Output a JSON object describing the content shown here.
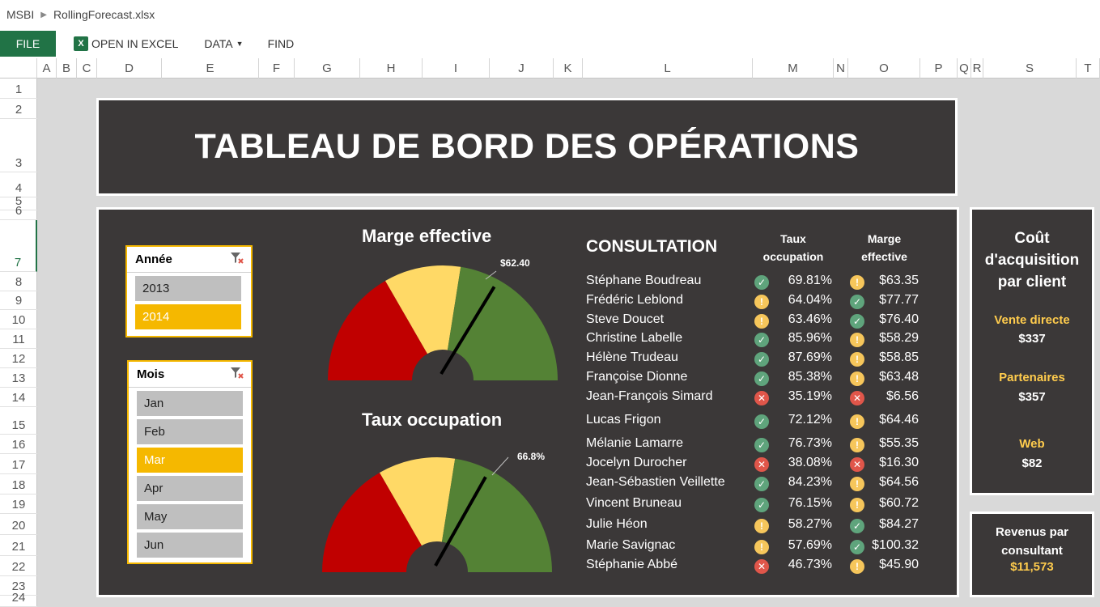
{
  "breadcrumb": {
    "root": "MSBI",
    "file": "RollingForecast.xlsx"
  },
  "ribbon": {
    "file": "FILE",
    "open_excel": "OPEN IN EXCEL",
    "data": "DATA",
    "find": "FIND"
  },
  "columns": [
    "A",
    "B",
    "C",
    "D",
    "E",
    "F",
    "G",
    "H",
    "I",
    "J",
    "K",
    "L",
    "M",
    "N",
    "O",
    "P",
    "Q",
    "R",
    "S",
    "T"
  ],
  "rows": [
    "1",
    "2",
    "3",
    "4",
    "5",
    "6",
    "7",
    "8",
    "9",
    "10",
    "11",
    "12",
    "13",
    "14",
    "15",
    "16",
    "17",
    "18",
    "19",
    "20",
    "21",
    "22",
    "23",
    "24"
  ],
  "title": "TABLEAU DE BORD DES OPÉRATIONS",
  "slicer_annee": {
    "title": "Année",
    "items": [
      "2013",
      "2014"
    ],
    "selected": "2014"
  },
  "slicer_mois": {
    "title": "Mois",
    "items": [
      "Jan",
      "Feb",
      "Mar",
      "Apr",
      "May",
      "Jun"
    ],
    "selected": "Mar"
  },
  "gauge1": {
    "title": "Marge effective",
    "value_label": "$62.40",
    "value_fraction": 0.66
  },
  "gauge2": {
    "title": "Taux occupation",
    "value_label": "66.8%",
    "value_fraction": 0.65
  },
  "gauge_colors": {
    "red": "#c00000",
    "yellow": "#ffd966",
    "green": "#548235"
  },
  "consultation": {
    "title": "CONSULTATION",
    "col1": [
      "Taux",
      "occupation"
    ],
    "col2": [
      "Marge",
      "effective"
    ],
    "rows": [
      {
        "name": "Stéphane Boudreau",
        "s1": "ok",
        "taux": "69.81%",
        "s2": "warn",
        "marge": "$63.35"
      },
      {
        "name": "Frédéric Leblond",
        "s1": "warn",
        "taux": "64.04%",
        "s2": "ok",
        "marge": "$77.77"
      },
      {
        "name": "Steve Doucet",
        "s1": "warn",
        "taux": "63.46%",
        "s2": "ok",
        "marge": "$76.40"
      },
      {
        "name": "Christine Labelle",
        "s1": "ok",
        "taux": "85.96%",
        "s2": "warn",
        "marge": "$58.29"
      },
      {
        "name": "Hélène Trudeau",
        "s1": "ok",
        "taux": "87.69%",
        "s2": "warn",
        "marge": "$58.85"
      },
      {
        "name": "Françoise Dionne",
        "s1": "ok",
        "taux": "85.38%",
        "s2": "warn",
        "marge": "$63.48"
      },
      {
        "name": "Jean-François Simard",
        "s1": "bad",
        "taux": "35.19%",
        "s2": "bad",
        "marge": "$6.56"
      },
      {
        "name": "Lucas Frigon",
        "s1": "ok",
        "taux": "72.12%",
        "s2": "warn",
        "marge": "$64.46"
      },
      {
        "name": "Mélanie Lamarre",
        "s1": "ok",
        "taux": "76.73%",
        "s2": "warn",
        "marge": "$55.35"
      },
      {
        "name": "Jocelyn Durocher",
        "s1": "bad",
        "taux": "38.08%",
        "s2": "bad",
        "marge": "$16.30"
      },
      {
        "name": "Jean-Sébastien Veillette",
        "s1": "ok",
        "taux": "84.23%",
        "s2": "warn",
        "marge": "$64.56"
      },
      {
        "name": "Vincent Bruneau",
        "s1": "ok",
        "taux": "76.15%",
        "s2": "warn",
        "marge": "$60.72"
      },
      {
        "name": "Julie Héon",
        "s1": "warn",
        "taux": "58.27%",
        "s2": "ok",
        "marge": "$84.27"
      },
      {
        "name": "Marie Savignac",
        "s1": "warn",
        "taux": "57.69%",
        "s2": "ok",
        "marge": "$100.32"
      },
      {
        "name": "Stéphanie Abbé",
        "s1": "bad",
        "taux": "46.73%",
        "s2": "warn",
        "marge": "$45.90"
      }
    ]
  },
  "cost": {
    "title": [
      "Coût",
      "d'acquisition",
      "par client"
    ],
    "items": [
      {
        "label": "Vente directe",
        "value": "$337"
      },
      {
        "label": "Partenaires",
        "value": "$357"
      },
      {
        "label": "Web",
        "value": "$82"
      }
    ]
  },
  "revenue": {
    "title": [
      "Revenus par",
      "consultant"
    ],
    "value": "$11,573"
  },
  "icon_names": {
    "ok": "check-circle-icon",
    "warn": "exclamation-circle-icon",
    "bad": "x-circle-icon",
    "filter": "clear-filter-icon"
  }
}
